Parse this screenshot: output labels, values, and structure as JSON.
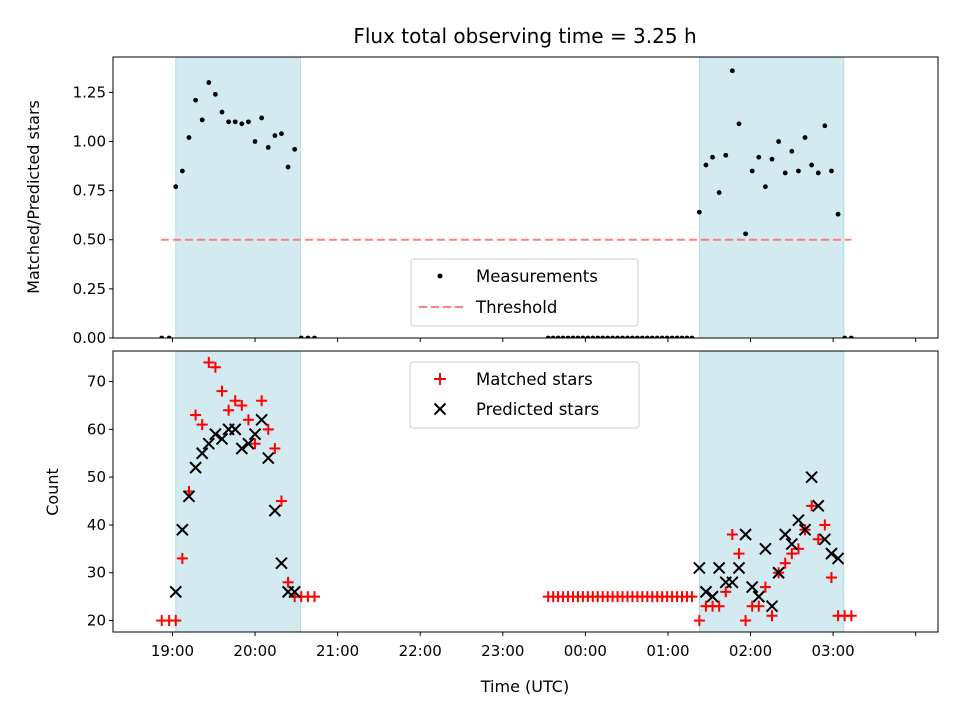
{
  "chart_data": [
    {
      "type": "scatter",
      "title": "Flux total observing time = 3.25 h",
      "xlabel": "",
      "ylabel": "Matched/Predicted stars",
      "xlim": [
        -0.72,
        9.27
      ],
      "ylim": [
        0,
        1.43
      ],
      "yticks": [
        0.0,
        0.25,
        0.5,
        0.75,
        1.0,
        1.25
      ],
      "ytick_labels": [
        "0.00",
        "0.25",
        "0.50",
        "0.75",
        "1.00",
        "1.25"
      ],
      "shaded_spans": [
        [
          0.04,
          1.55
        ],
        [
          6.38,
          8.13
        ]
      ],
      "shade_color": "#d4eaf1",
      "threshold": {
        "name": "Threshold",
        "value": 0.5,
        "x_range": [
          -0.14,
          8.22
        ],
        "color": "#ff7f7f"
      },
      "legend_position": "lower center",
      "series": [
        {
          "name": "Measurements",
          "color": "#000000",
          "x": [
            -0.13,
            -0.04,
            0.04,
            0.12,
            0.2,
            0.28,
            0.36,
            0.44,
            0.52,
            0.6,
            0.68,
            0.76,
            0.84,
            0.92,
            1.0,
            1.08,
            1.16,
            1.24,
            1.32,
            1.4,
            1.48,
            1.56,
            1.64,
            1.72,
            4.55,
            4.61,
            4.67,
            4.73,
            4.79,
            4.85,
            4.91,
            4.97,
            5.03,
            5.09,
            5.15,
            5.21,
            5.27,
            5.33,
            5.39,
            5.45,
            5.51,
            5.57,
            5.63,
            5.69,
            5.75,
            5.81,
            5.87,
            5.93,
            5.99,
            6.05,
            6.11,
            6.17,
            6.23,
            6.29,
            6.38,
            6.46,
            6.54,
            6.62,
            6.7,
            6.78,
            6.86,
            6.94,
            7.02,
            7.1,
            7.18,
            7.26,
            7.34,
            7.42,
            7.5,
            7.58,
            7.66,
            7.74,
            7.82,
            7.9,
            7.98,
            8.06,
            8.14,
            8.22
          ],
          "y": [
            0.0,
            0.0,
            0.77,
            0.85,
            1.02,
            1.21,
            1.11,
            1.3,
            1.24,
            1.15,
            1.1,
            1.1,
            1.09,
            1.1,
            1.0,
            1.12,
            0.97,
            1.03,
            1.04,
            0.87,
            0.96,
            0.0,
            0.0,
            0.0,
            0,
            0,
            0,
            0,
            0,
            0,
            0,
            0,
            0,
            0,
            0,
            0,
            0,
            0,
            0,
            0,
            0,
            0,
            0,
            0,
            0,
            0,
            0,
            0,
            0,
            0,
            0,
            0,
            0,
            0,
            0.64,
            0.88,
            0.92,
            0.74,
            0.93,
            1.36,
            1.09,
            0.53,
            0.85,
            0.92,
            0.77,
            0.91,
            1.0,
            0.84,
            0.95,
            0.85,
            1.02,
            0.88,
            0.84,
            1.08,
            0.85,
            0.63,
            0.0,
            0.0
          ]
        }
      ]
    },
    {
      "type": "scatter",
      "title": "",
      "xlabel": "Time (UTC)",
      "ylabel": "Count",
      "xlim": [
        -0.72,
        9.27
      ],
      "ylim": [
        17.6,
        76.4
      ],
      "yticks": [
        20,
        30,
        40,
        50,
        60,
        70
      ],
      "ytick_labels": [
        "20",
        "30",
        "40",
        "50",
        "60",
        "70"
      ],
      "xticks": [
        0,
        1,
        2,
        3,
        4,
        5,
        6,
        7,
        8,
        9
      ],
      "xtick_labels": [
        "19:00",
        "20:00",
        "21:00",
        "22:00",
        "23:00",
        "00:00",
        "01:00",
        "02:00",
        "03:00",
        ""
      ],
      "shaded_spans": [
        [
          0.04,
          1.55
        ],
        [
          6.38,
          8.13
        ]
      ],
      "legend_position": "upper center",
      "series": [
        {
          "name": "Matched stars",
          "marker": "plus",
          "color": "#ff0000",
          "x": [
            -0.13,
            -0.04,
            0.04,
            0.12,
            0.2,
            0.28,
            0.36,
            0.44,
            0.52,
            0.6,
            0.68,
            0.76,
            0.84,
            0.92,
            1.0,
            1.08,
            1.16,
            1.24,
            1.32,
            1.4,
            1.48,
            1.56,
            1.64,
            1.72,
            4.55,
            4.61,
            4.67,
            4.73,
            4.79,
            4.85,
            4.91,
            4.97,
            5.03,
            5.09,
            5.15,
            5.21,
            5.27,
            5.33,
            5.39,
            5.45,
            5.51,
            5.57,
            5.63,
            5.69,
            5.75,
            5.81,
            5.87,
            5.93,
            5.99,
            6.05,
            6.11,
            6.17,
            6.23,
            6.29,
            6.38,
            6.46,
            6.54,
            6.62,
            6.7,
            6.78,
            6.86,
            6.94,
            7.02,
            7.1,
            7.18,
            7.26,
            7.34,
            7.42,
            7.5,
            7.58,
            7.66,
            7.74,
            7.82,
            7.9,
            7.98,
            8.06,
            8.14,
            8.22
          ],
          "y": [
            20,
            20,
            20,
            33,
            47,
            63,
            61,
            74,
            73,
            68,
            64,
            66,
            65,
            62,
            57,
            66,
            60,
            56,
            45,
            28,
            25,
            25,
            25,
            25,
            25,
            25,
            25,
            25,
            25,
            25,
            25,
            25,
            25,
            25,
            25,
            25,
            25,
            25,
            25,
            25,
            25,
            25,
            25,
            25,
            25,
            25,
            25,
            25,
            25,
            25,
            25,
            25,
            25,
            25,
            20,
            23,
            23,
            23,
            26,
            38,
            34,
            20,
            23,
            23,
            27,
            21,
            30,
            32,
            34,
            35,
            39,
            44,
            37,
            40,
            29,
            21,
            21,
            21
          ]
        },
        {
          "name": "Predicted stars",
          "marker": "x",
          "color": "#000000",
          "x": [
            0.04,
            0.12,
            0.2,
            0.28,
            0.36,
            0.44,
            0.52,
            0.6,
            0.68,
            0.76,
            0.84,
            0.92,
            1.0,
            1.08,
            1.16,
            1.24,
            1.32,
            1.4,
            1.48,
            6.38,
            6.46,
            6.54,
            6.62,
            6.7,
            6.78,
            6.86,
            6.94,
            7.02,
            7.1,
            7.18,
            7.26,
            7.34,
            7.42,
            7.5,
            7.58,
            7.66,
            7.74,
            7.82,
            7.9,
            7.98,
            8.06
          ],
          "y": [
            26,
            39,
            46,
            52,
            55,
            57,
            59,
            58,
            60,
            60,
            56,
            57,
            59,
            62,
            54,
            43,
            32,
            26,
            26,
            31,
            26,
            25,
            31,
            28,
            28,
            31,
            38,
            27,
            25,
            35,
            23,
            30,
            38,
            36,
            41,
            39,
            50,
            44,
            37,
            34,
            33
          ]
        }
      ]
    }
  ]
}
